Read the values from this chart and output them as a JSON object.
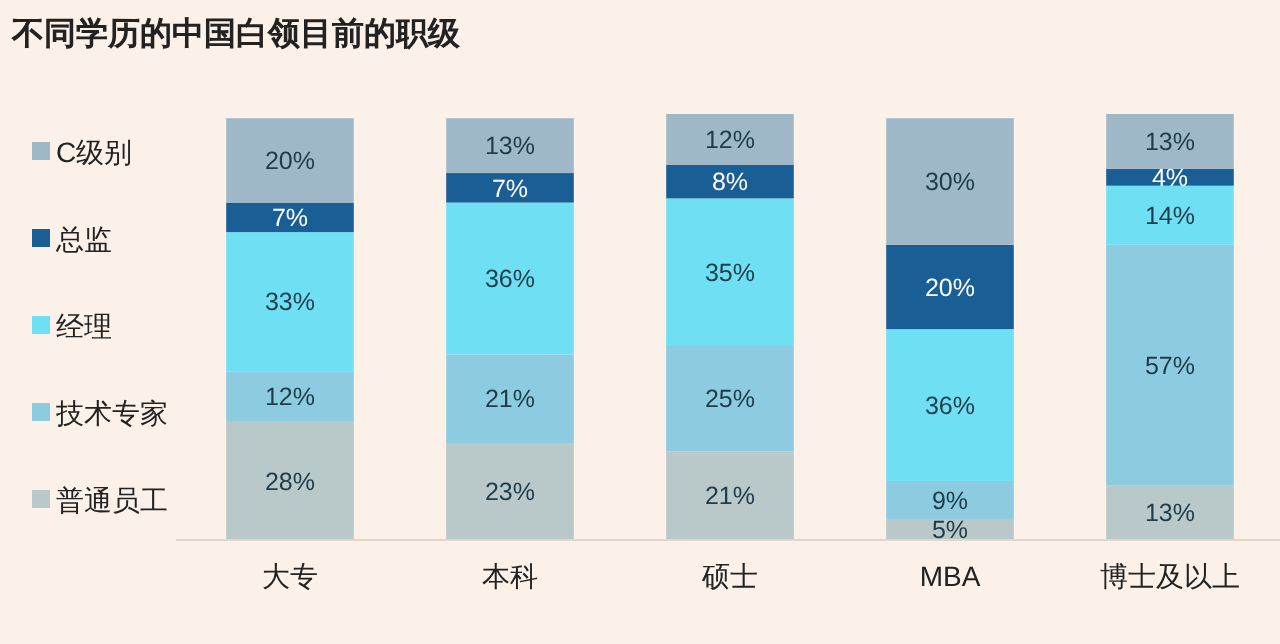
{
  "chart_data": {
    "type": "bar",
    "title": "不同学历的中国白领目前的职级",
    "stacked": true,
    "legend": "left",
    "categories": [
      "大专",
      "本科",
      "硕士",
      "MBA",
      "博士及以上"
    ],
    "series": [
      {
        "name": "普通员工",
        "color": "#b9c8c8",
        "values": [
          28,
          23,
          21,
          5,
          13
        ],
        "value_labels": [
          "28%",
          "23%",
          "21%",
          "5%",
          "13%"
        ]
      },
      {
        "name": "技术专家",
        "color": "#8ccbe0",
        "values": [
          12,
          21,
          25,
          9,
          57
        ],
        "value_labels": [
          "12%",
          "21%",
          "25%",
          "9%",
          "57%"
        ]
      },
      {
        "name": "经理",
        "color": "#6fe0f4",
        "values": [
          33,
          36,
          35,
          36,
          14
        ],
        "value_labels": [
          "33%",
          "36%",
          "35%",
          "36%",
          "14%"
        ]
      },
      {
        "name": "总监",
        "color": "#1a5e96",
        "values": [
          7,
          7,
          8,
          20,
          4
        ],
        "value_labels": [
          "7%",
          "7%",
          "8%",
          "20%",
          "4%"
        ]
      },
      {
        "name": "C级别",
        "color": "#9fb8c8",
        "values": [
          20,
          13,
          12,
          30,
          13
        ],
        "value_labels": [
          "20%",
          "13%",
          "12%",
          "30%",
          "13%"
        ]
      }
    ]
  }
}
